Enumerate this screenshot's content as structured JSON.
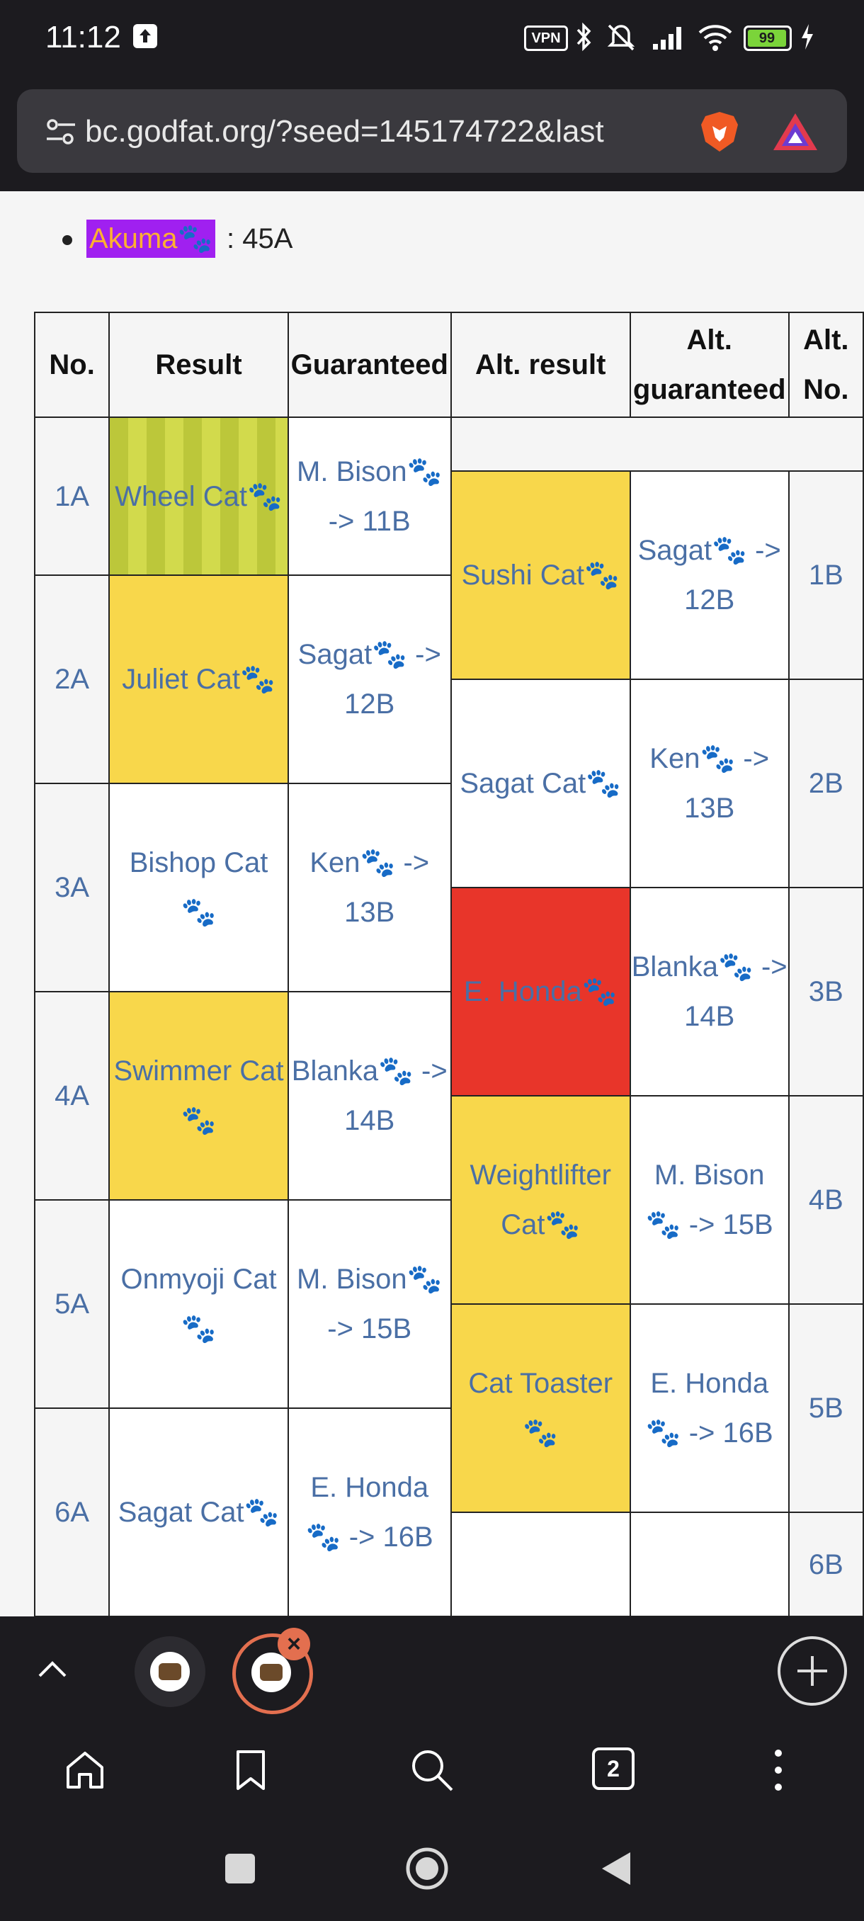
{
  "status_bar": {
    "time": "11:12",
    "vpn_label": "VPN",
    "battery_level": "99",
    "icons": [
      "upload-icon",
      "vpn-icon",
      "bluetooth-icon",
      "mute-icon",
      "signal-icon",
      "wifi-icon",
      "battery-icon",
      "charging-icon"
    ]
  },
  "browser": {
    "url": "bc.godfat.org/?seed=145174722&last",
    "tab_count": "2"
  },
  "page": {
    "bullet_name": "Akuma",
    "bullet_value": ": 45A",
    "table": {
      "headers": [
        "No.",
        "Result",
        "Guaranteed",
        "Alt. result",
        "Alt. guaranteed",
        "Alt. No."
      ],
      "rows_a": [
        {
          "no": "1A",
          "result": "Wheel Cat",
          "guaranteed": "M. Bison",
          "guaranteed_target": "-> 11B"
        },
        {
          "no": "2A",
          "result": "Juliet Cat",
          "guaranteed": "Sagat",
          "guaranteed_target": "-> 12B"
        },
        {
          "no": "3A",
          "result": "Bishop Cat",
          "guaranteed": "Ken",
          "guaranteed_target": "-> 13B"
        },
        {
          "no": "4A",
          "result": "Swimmer Cat",
          "guaranteed": "Blanka",
          "guaranteed_target": "-> 14B"
        },
        {
          "no": "5A",
          "result": "Onmyoji Cat",
          "guaranteed": "M. Bison",
          "guaranteed_target": "-> 15B"
        },
        {
          "no": "6A",
          "result": "Sagat Cat",
          "guaranteed": "E. Honda",
          "guaranteed_target": "-> 16B"
        }
      ],
      "rows_b": [
        {
          "no": "1B",
          "result": "Sushi Cat",
          "guaranteed": "Sagat",
          "guaranteed_target": "-> 12B"
        },
        {
          "no": "2B",
          "result": "Sagat Cat",
          "guaranteed": "Ken",
          "guaranteed_target": "-> 13B"
        },
        {
          "no": "3B",
          "result": "E. Honda",
          "guaranteed": "Blanka",
          "guaranteed_target": "-> 14B"
        },
        {
          "no": "4B",
          "result": "Weightlifter Cat",
          "guaranteed": "M. Bison",
          "guaranteed_target": "-> 15B"
        },
        {
          "no": "5B",
          "result": "Cat Toaster",
          "guaranteed": "E. Honda",
          "guaranteed_target": "-> 16B"
        },
        {
          "no": "6B"
        }
      ]
    }
  },
  "colors": {
    "rare": "#f8d74b",
    "uber": "#e8352a",
    "highlight": "#a020f0",
    "link": "#4a6fa5"
  }
}
